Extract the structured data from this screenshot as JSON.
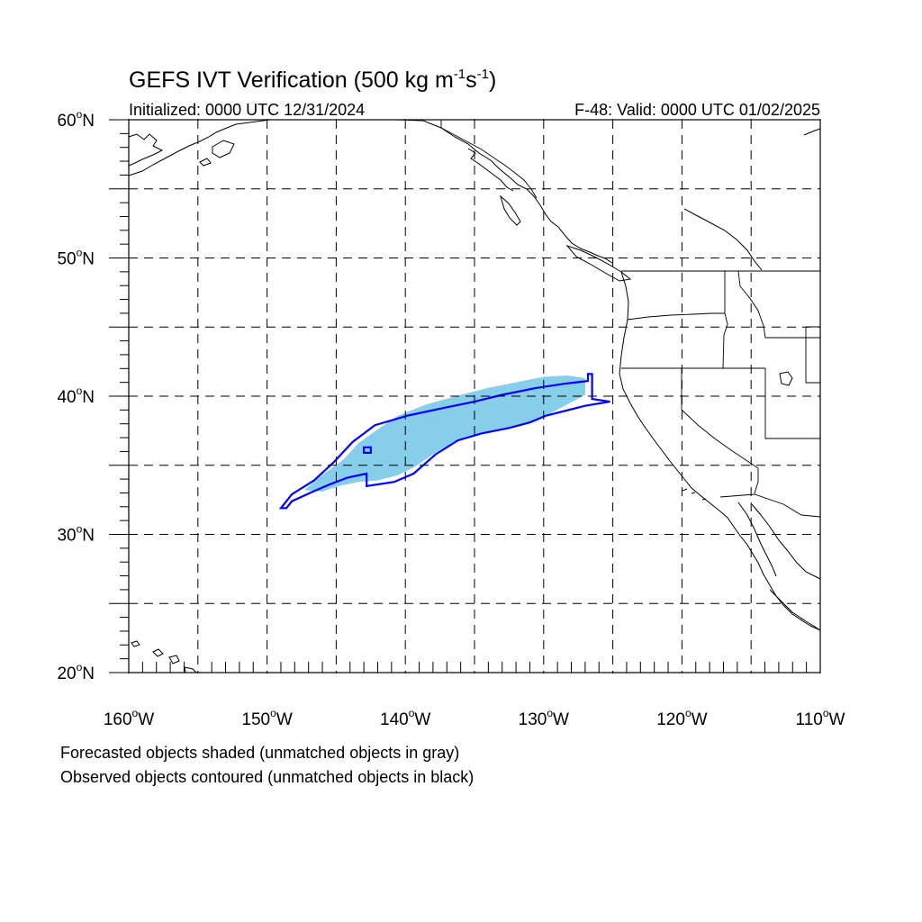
{
  "title": {
    "main": "GEFS IVT Verification (500 kg m",
    "sup1": "-1",
    "mid": "s",
    "sup2": "-1",
    "end": ")"
  },
  "initialized": "Initialized: 0000 UTC 12/31/2024",
  "valid": "F-48: Valid: 0000 UTC 01/02/2025",
  "axes": {
    "lon_range": [
      -160,
      -110
    ],
    "lat_range": [
      20,
      60
    ],
    "x_ticks": [
      {
        "value": -160,
        "label": "160",
        "hemi": "W"
      },
      {
        "value": -150,
        "label": "150",
        "hemi": "W"
      },
      {
        "value": -140,
        "label": "140",
        "hemi": "W"
      },
      {
        "value": -130,
        "label": "130",
        "hemi": "W"
      },
      {
        "value": -120,
        "label": "120",
        "hemi": "W"
      },
      {
        "value": -110,
        "label": "110",
        "hemi": "W"
      }
    ],
    "y_ticks": [
      {
        "value": 60,
        "label": "60",
        "hemi": "N"
      },
      {
        "value": 50,
        "label": "50",
        "hemi": "N"
      },
      {
        "value": 40,
        "label": "40",
        "hemi": "N"
      },
      {
        "value": 30,
        "label": "30",
        "hemi": "N"
      },
      {
        "value": 20,
        "label": "20",
        "hemi": "N"
      }
    ],
    "grid_lon": [
      -155,
      -150,
      -145,
      -140,
      -135,
      -130,
      -125,
      -120,
      -115
    ],
    "grid_lat": [
      55,
      50,
      45,
      40,
      35,
      30,
      25
    ]
  },
  "colors": {
    "forecast_fill": "#87ceeb",
    "observed_contour": "#0000ff",
    "coastline": "#000000",
    "grid": "#000000"
  },
  "forecast_object": {
    "polygon": [
      [
        -147.3,
        33.2
      ],
      [
        -146.0,
        34.3
      ],
      [
        -144.5,
        35.4
      ],
      [
        -143.4,
        36.6
      ],
      [
        -142.0,
        37.6
      ],
      [
        -140.5,
        38.6
      ],
      [
        -138.5,
        39.4
      ],
      [
        -136.0,
        40.1
      ],
      [
        -134.0,
        40.6
      ],
      [
        -132.0,
        41.0
      ],
      [
        -130.0,
        41.4
      ],
      [
        -128.3,
        41.5
      ],
      [
        -127.0,
        41.3
      ],
      [
        -127.0,
        40.1
      ],
      [
        -128.3,
        39.4
      ],
      [
        -130.0,
        38.5
      ],
      [
        -131.5,
        38.0
      ],
      [
        -133.0,
        37.6
      ],
      [
        -135.0,
        37.2
      ],
      [
        -136.5,
        36.7
      ],
      [
        -138.0,
        35.8
      ],
      [
        -139.3,
        34.9
      ],
      [
        -140.5,
        34.3
      ],
      [
        -142.0,
        33.9
      ],
      [
        -143.4,
        33.8
      ],
      [
        -144.8,
        33.5
      ],
      [
        -146.0,
        33.1
      ]
    ]
  },
  "observed_object": {
    "polygon": [
      [
        -149.0,
        31.9
      ],
      [
        -148.2,
        32.9
      ],
      [
        -146.6,
        33.9
      ],
      [
        -145.2,
        35.2
      ],
      [
        -143.8,
        36.7
      ],
      [
        -142.2,
        37.9
      ],
      [
        -139.8,
        38.6
      ],
      [
        -137.0,
        39.2
      ],
      [
        -135.0,
        39.6
      ],
      [
        -133.0,
        40.1
      ],
      [
        -130.5,
        40.6
      ],
      [
        -128.5,
        40.9
      ],
      [
        -126.8,
        41.1
      ],
      [
        -126.8,
        41.6
      ],
      [
        -126.5,
        41.6
      ],
      [
        -126.5,
        39.8
      ],
      [
        -125.2,
        39.6
      ],
      [
        -127.0,
        39.3
      ],
      [
        -129.8,
        38.6
      ],
      [
        -131.0,
        38.1
      ],
      [
        -132.5,
        37.7
      ],
      [
        -134.5,
        37.3
      ],
      [
        -136.2,
        36.8
      ],
      [
        -137.8,
        35.8
      ],
      [
        -139.4,
        34.4
      ],
      [
        -140.8,
        33.8
      ],
      [
        -142.8,
        33.5
      ],
      [
        -142.8,
        34.4
      ],
      [
        -144.2,
        34.1
      ],
      [
        -145.5,
        33.6
      ],
      [
        -146.9,
        33.0
      ],
      [
        -148.2,
        32.4
      ],
      [
        -148.6,
        31.9
      ]
    ],
    "inner_ring": [
      [
        -143.0,
        35.9
      ],
      [
        -142.5,
        35.9
      ],
      [
        -142.5,
        36.3
      ],
      [
        -143.0,
        36.3
      ]
    ]
  },
  "footnote": {
    "line1": "Forecasted objects shaded (unmatched objects in gray)",
    "line2": "Observed objects contoured (unmatched objects in black)"
  }
}
